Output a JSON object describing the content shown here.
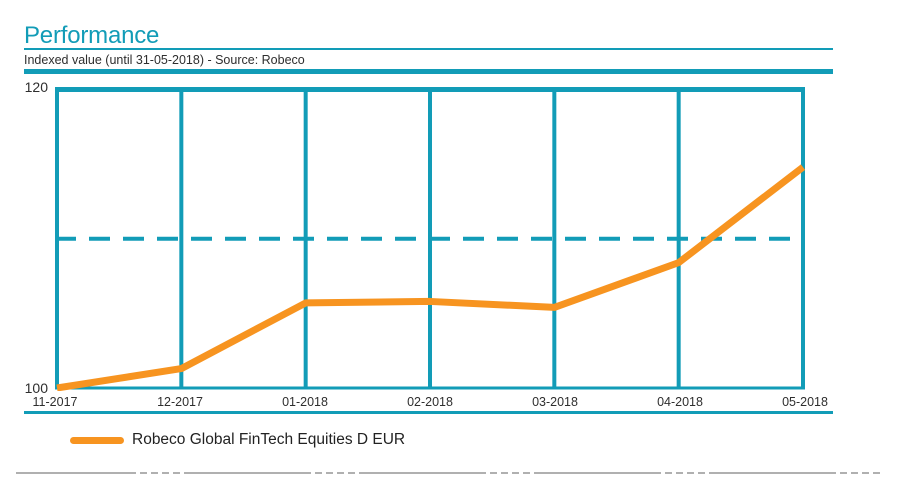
{
  "header": {
    "title": "Performance",
    "subtitle": "Indexed value (until 31-05-2018) - Source: Robeco"
  },
  "colors": {
    "teal": "#129cb7",
    "orange": "#f79420",
    "text_dark": "#2e2e2e",
    "footer_gray": "#b0b0b0"
  },
  "chart_data": {
    "type": "line",
    "x": [
      "11-2017",
      "12-2017",
      "01-2018",
      "02-2018",
      "03-2018",
      "04-2018",
      "05-2018"
    ],
    "series": [
      {
        "name": "Robeco Global FinTech Equities D EUR",
        "color": "#f79420",
        "values": [
          100.0,
          101.3,
          105.7,
          105.8,
          105.4,
          108.4,
          114.8
        ]
      }
    ],
    "ylim": [
      100,
      120
    ],
    "yticks": [
      100,
      120
    ],
    "reference_line_value": 110,
    "grid": "vertical gridlines at each month, dashed horizontal reference line",
    "legend_position": "bottom-left"
  },
  "legend": {
    "items": [
      {
        "label": "Robeco Global FinTech Equities D EUR",
        "color": "#f79420"
      }
    ]
  }
}
